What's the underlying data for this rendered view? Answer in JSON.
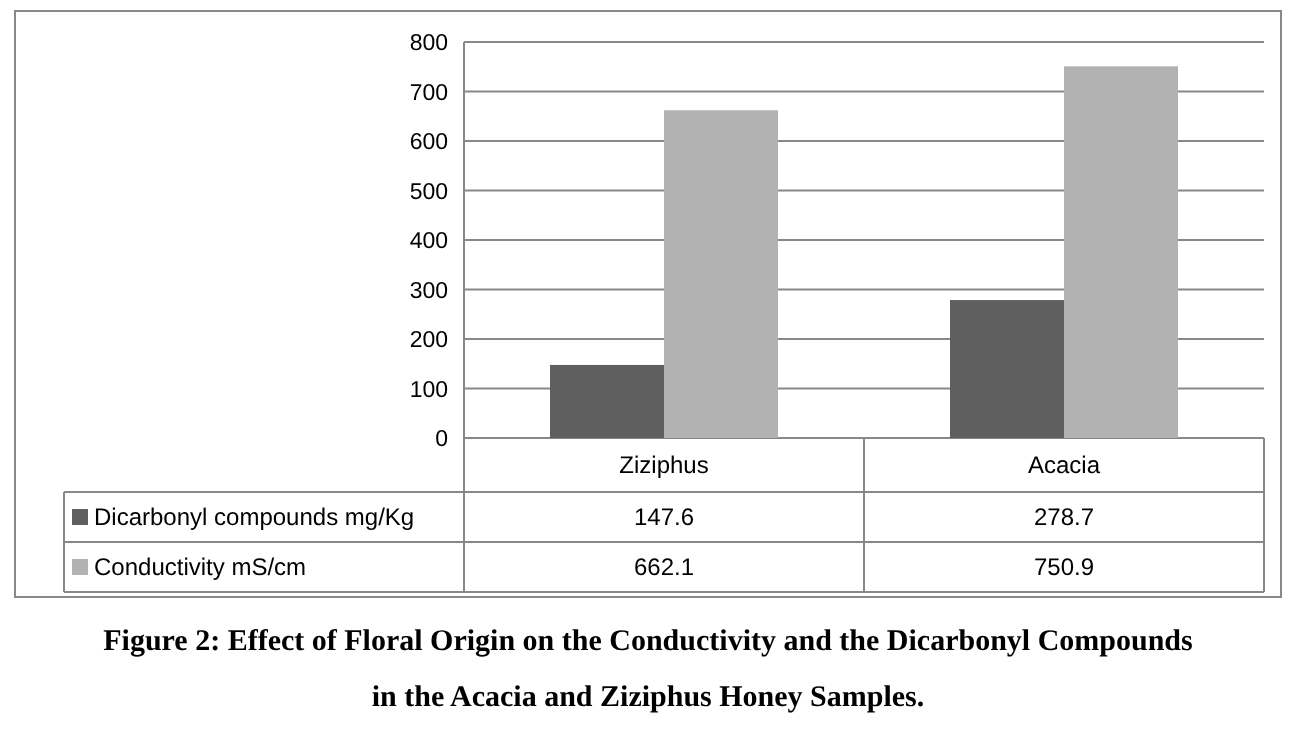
{
  "chart_data": {
    "type": "bar",
    "categories": [
      "Ziziphus",
      "Acacia"
    ],
    "series": [
      {
        "name": "Dicarbonyl compounds mg/Kg",
        "color": "#5f5f5f",
        "values": [
          147.6,
          278.7
        ]
      },
      {
        "name": "Conductivity mS/cm",
        "color": "#b2b2b2",
        "values": [
          662.1,
          750.9
        ]
      }
    ],
    "ylim": [
      0,
      800
    ],
    "yticks": [
      0,
      100,
      200,
      300,
      400,
      500,
      600,
      700,
      800
    ],
    "grid": "y",
    "legend": "bottom left",
    "data_labels": true,
    "annotations": [
      "Figure 2: Effect of Floral Origin on the Conductivity and the Dicarbonyl Compounds in the  Acacia and Ziziphus Honey Samples."
    ]
  }
}
